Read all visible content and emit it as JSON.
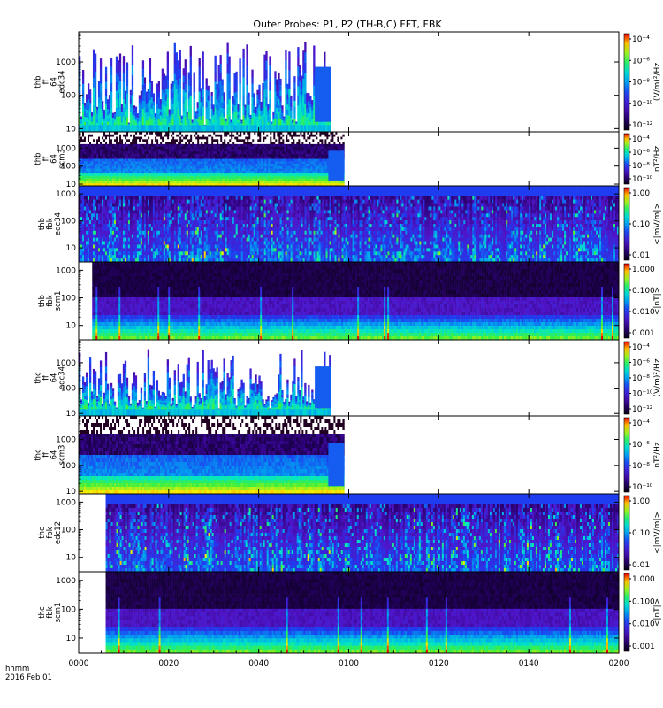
{
  "title": "Outer Probes: P1, P2 (TH-B,C) FFT, FBK",
  "footer": {
    "line1": "hhmm",
    "line2": "2016 Feb 01"
  },
  "colors": {
    "axis": "#000000",
    "background": "#ffffff"
  },
  "chart_data": {
    "type": "heatmap",
    "x_ticks": [
      "0000",
      "0020",
      "0040",
      "0100",
      "0120",
      "0140",
      "0200"
    ],
    "x_range_minutes": [
      0,
      120
    ],
    "panels": [
      {
        "label": [
          "thb",
          "ff",
          "64",
          "edc34"
        ],
        "y_ticks": [
          "1000",
          "100",
          "10"
        ],
        "y_range": [
          8,
          8000
        ],
        "y_log": true,
        "colorbar": {
          "unit": "(V/m)²/Hz",
          "ticks": [
            "10⁻⁴",
            "10⁻⁶",
            "10⁻⁸",
            "10⁻¹⁰",
            "10⁻¹²"
          ]
        },
        "data_coverage_minutes": [
          0,
          56
        ],
        "style": "spiky"
      },
      {
        "label": [
          "thb",
          "ff",
          "64",
          "scm3"
        ],
        "y_ticks": [
          "1000",
          "100",
          "10"
        ],
        "y_range": [
          8,
          8000
        ],
        "y_log": true,
        "colorbar": {
          "unit": "nT²/Hz",
          "ticks": [
            "10⁻⁴",
            "10⁻⁶",
            "10⁻⁸",
            "10⁻¹⁰"
          ]
        },
        "data_coverage_minutes": [
          0,
          59
        ],
        "style": "banded"
      },
      {
        "label": [
          "thb",
          "fbk",
          "edc34"
        ],
        "y_ticks": [
          "1000",
          "100",
          "10"
        ],
        "y_range": [
          3,
          2000
        ],
        "y_log": true,
        "colorbar": {
          "unit": "<|mV/m|>",
          "ticks": [
            "1.00",
            "0.10",
            "0.01"
          ]
        },
        "data_coverage_minutes": [
          0,
          120
        ],
        "style": "fbk"
      },
      {
        "label": [
          "thb",
          "fbk",
          "scm1"
        ],
        "y_ticks": [
          "1000",
          "100",
          "10"
        ],
        "y_range": [
          3,
          2000
        ],
        "y_log": true,
        "colorbar": {
          "unit": "<|nT|>",
          "ticks": [
            "1.000",
            "0.100",
            "0.010",
            "0.001"
          ]
        },
        "data_coverage_minutes": [
          3,
          120
        ],
        "style": "fbk-scm"
      },
      {
        "label": [
          "thc",
          "ff",
          "64",
          "edc34"
        ],
        "y_ticks": [
          "1000",
          "100",
          "10"
        ],
        "y_range": [
          8,
          8000
        ],
        "y_log": true,
        "colorbar": {
          "unit": "(V/m)²/Hz",
          "ticks": [
            "10⁻⁴",
            "10⁻⁶",
            "10⁻⁸",
            "10⁻¹⁰",
            "10⁻¹²"
          ]
        },
        "data_coverage_minutes": [
          0,
          56
        ],
        "style": "spiky"
      },
      {
        "label": [
          "thc",
          "ff",
          "64",
          "scm3"
        ],
        "y_ticks": [
          "1000",
          "100",
          "10"
        ],
        "y_range": [
          8,
          8000
        ],
        "y_log": true,
        "colorbar": {
          "unit": "nT²/Hz",
          "ticks": [
            "10⁻⁴",
            "10⁻⁶",
            "10⁻⁸",
            "10⁻¹⁰"
          ]
        },
        "data_coverage_minutes": [
          0,
          59
        ],
        "style": "banded"
      },
      {
        "label": [
          "thc",
          "fbk",
          "edc12"
        ],
        "y_ticks": [
          "1000",
          "100",
          "10"
        ],
        "y_range": [
          3,
          2000
        ],
        "y_log": true,
        "colorbar": {
          "unit": "<|mV/m|>",
          "ticks": [
            "1.00",
            "0.10",
            "0.01"
          ]
        },
        "data_coverage_minutes": [
          6,
          120
        ],
        "style": "fbk"
      },
      {
        "label": [
          "thc",
          "fbk",
          "scm1"
        ],
        "y_ticks": [
          "1000",
          "100",
          "10"
        ],
        "y_range": [
          3,
          2000
        ],
        "y_log": true,
        "colorbar": {
          "unit": "<|nT|>",
          "ticks": [
            "1.000",
            "0.100",
            "0.010",
            "0.001"
          ]
        },
        "data_coverage_minutes": [
          6,
          120
        ],
        "style": "fbk-scm"
      }
    ]
  }
}
